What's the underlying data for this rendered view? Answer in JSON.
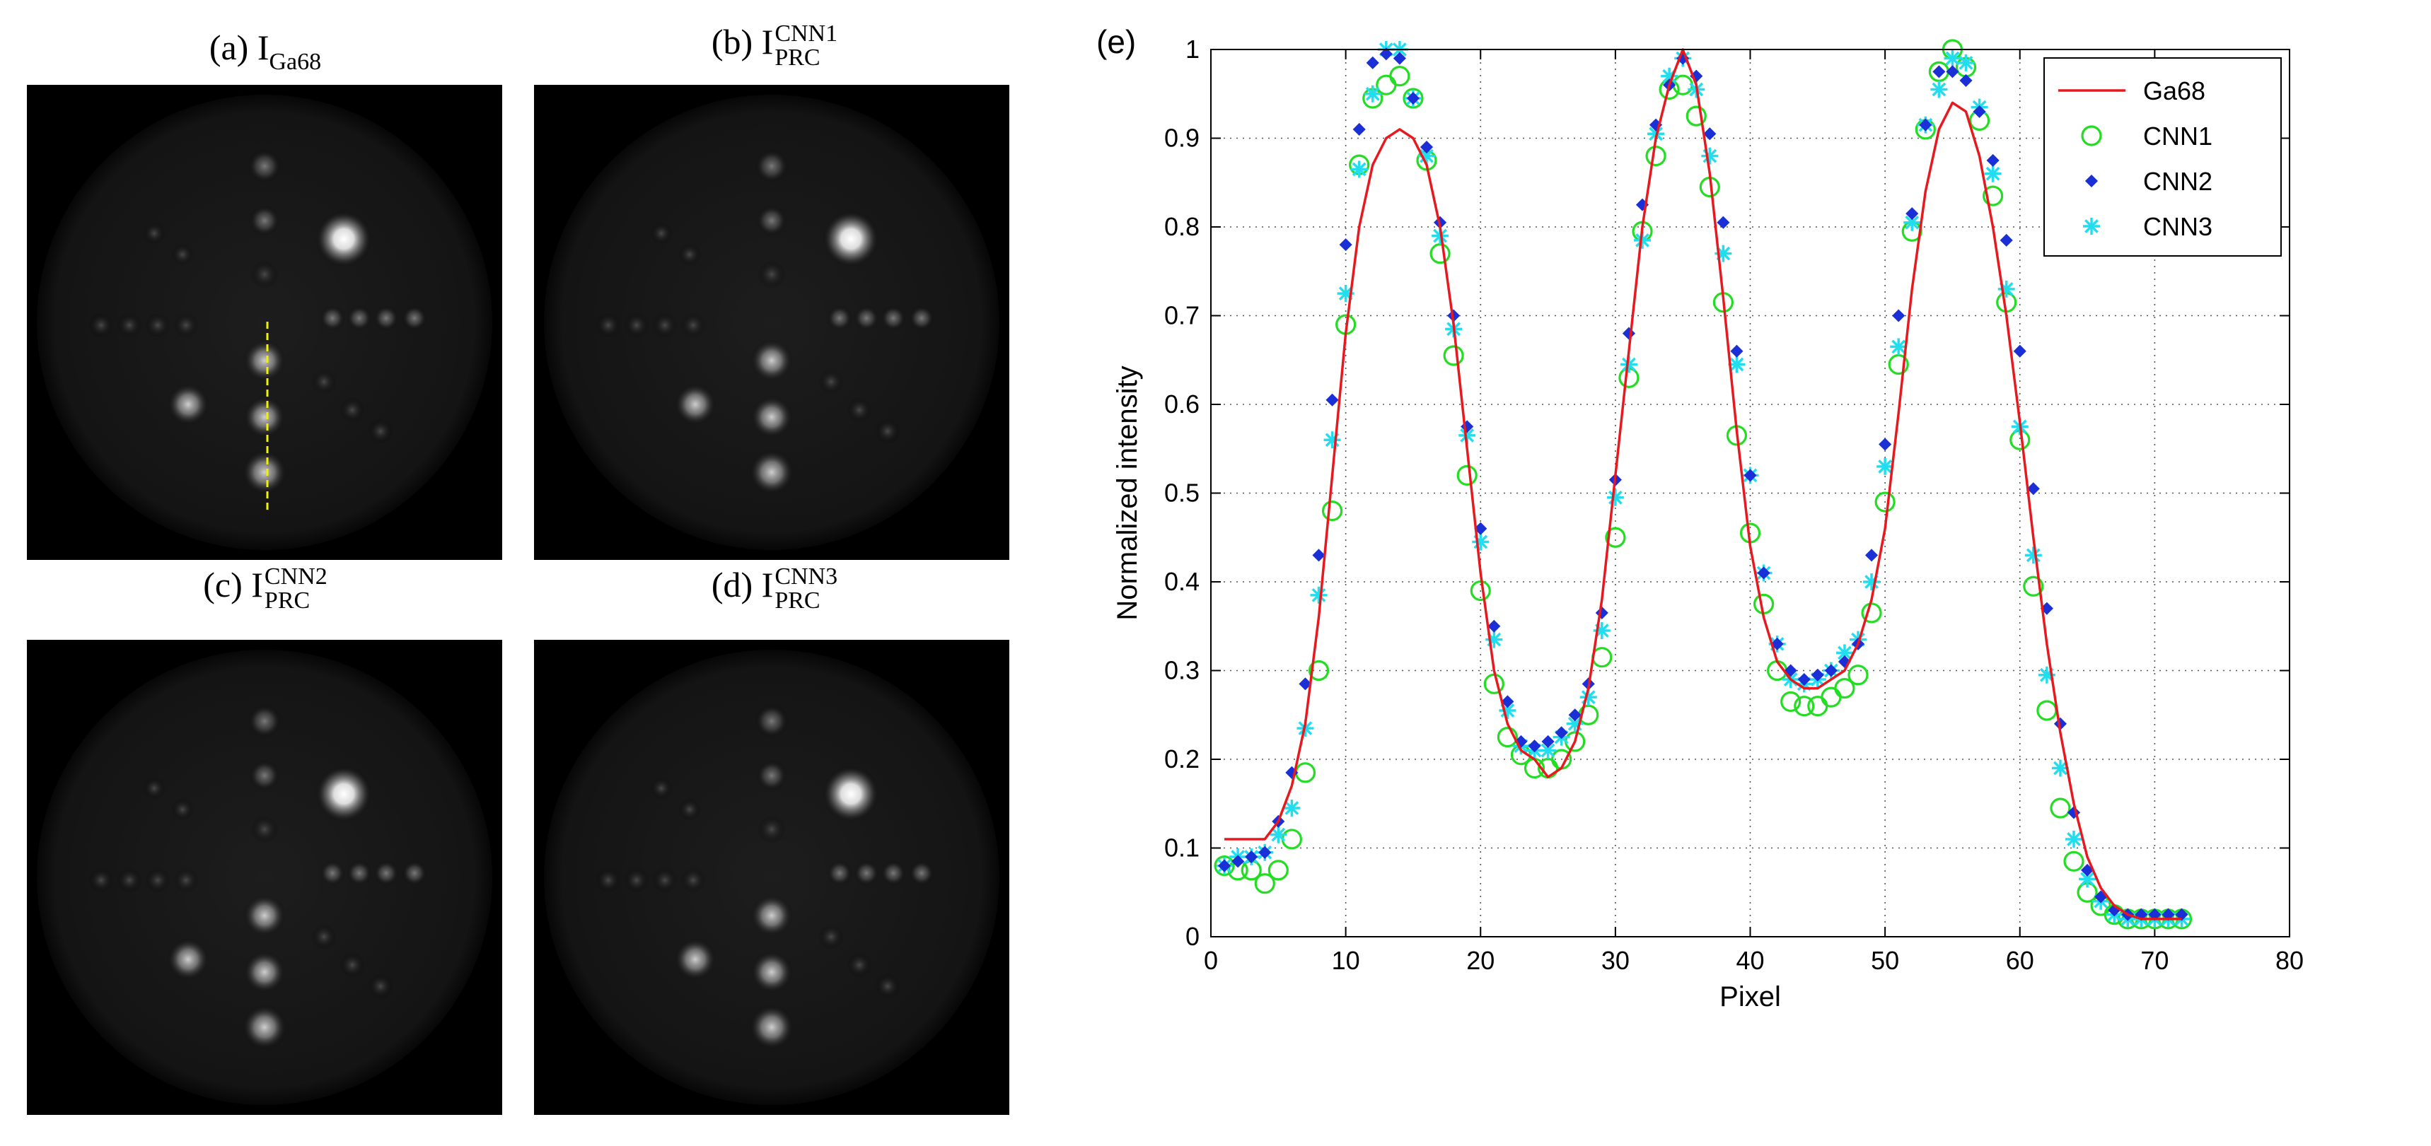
{
  "panels": {
    "a": {
      "prefix": "(a) I",
      "sub": "Ga68",
      "sup": ""
    },
    "b": {
      "prefix": "(b) I",
      "sub": "PRC",
      "sup": "CNN1"
    },
    "c": {
      "prefix": "(c) I",
      "sub": "PRC",
      "sup": "CNN2"
    },
    "d": {
      "prefix": "(d) I",
      "sub": "PRC",
      "sup": "CNN3"
    }
  },
  "chart_label": "(e)",
  "colors": {
    "ga68": "#e8191e",
    "cnn1": "#22dd22",
    "cnn2": "#1b2fd6",
    "cnn3": "#22ddee",
    "grid": "#555555"
  },
  "chart_data": {
    "type": "line",
    "xlabel": "Pixel",
    "ylabel": "Normalized intensity",
    "xlim": [
      0,
      80
    ],
    "ylim": [
      0,
      1
    ],
    "xticks": [
      0,
      10,
      20,
      30,
      40,
      50,
      60,
      70,
      80
    ],
    "yticks": [
      0,
      0.1,
      0.2,
      0.3,
      0.4,
      0.5,
      0.6,
      0.7,
      0.8,
      0.9,
      1
    ],
    "ytick_labels": [
      "0",
      "0.1",
      "0.2",
      "0.3",
      "0.4",
      "0.5",
      "0.6",
      "0.7",
      "0.8",
      "0.9",
      "1"
    ],
    "grid": true,
    "legend_position": "top-right",
    "x": [
      1,
      2,
      3,
      4,
      5,
      6,
      7,
      8,
      9,
      10,
      11,
      12,
      13,
      14,
      15,
      16,
      17,
      18,
      19,
      20,
      21,
      22,
      23,
      24,
      25,
      26,
      27,
      28,
      29,
      30,
      31,
      32,
      33,
      34,
      35,
      36,
      37,
      38,
      39,
      40,
      41,
      42,
      43,
      44,
      45,
      46,
      47,
      48,
      49,
      50,
      51,
      52,
      53,
      54,
      55,
      56,
      57,
      58,
      59,
      60,
      61,
      62,
      63,
      64,
      65,
      66,
      67,
      68,
      69,
      70,
      71,
      72
    ],
    "series": [
      {
        "name": "Ga68",
        "style": "line",
        "values": [
          0.11,
          0.11,
          0.11,
          0.11,
          0.13,
          0.17,
          0.24,
          0.36,
          0.52,
          0.68,
          0.8,
          0.87,
          0.9,
          0.91,
          0.9,
          0.87,
          0.8,
          0.69,
          0.55,
          0.41,
          0.3,
          0.24,
          0.21,
          0.2,
          0.18,
          0.19,
          0.22,
          0.28,
          0.38,
          0.52,
          0.66,
          0.8,
          0.9,
          0.96,
          1.0,
          0.96,
          0.86,
          0.72,
          0.57,
          0.44,
          0.36,
          0.31,
          0.29,
          0.28,
          0.28,
          0.29,
          0.3,
          0.33,
          0.38,
          0.46,
          0.59,
          0.73,
          0.84,
          0.91,
          0.94,
          0.93,
          0.88,
          0.8,
          0.7,
          0.58,
          0.45,
          0.33,
          0.23,
          0.15,
          0.09,
          0.055,
          0.035,
          0.025,
          0.02,
          0.02,
          0.02,
          0.02
        ]
      },
      {
        "name": "CNN1",
        "style": "circle",
        "values": [
          0.08,
          0.075,
          0.075,
          0.06,
          0.075,
          0.11,
          0.185,
          0.3,
          0.48,
          0.69,
          0.87,
          0.945,
          0.96,
          0.97,
          0.945,
          0.875,
          0.77,
          0.655,
          0.52,
          0.39,
          0.285,
          0.225,
          0.205,
          0.19,
          0.19,
          0.2,
          0.22,
          0.25,
          0.315,
          0.45,
          0.63,
          0.795,
          0.88,
          0.955,
          0.96,
          0.925,
          0.845,
          0.715,
          0.565,
          0.455,
          0.375,
          0.3,
          0.265,
          0.26,
          0.26,
          0.27,
          0.28,
          0.295,
          0.365,
          0.49,
          0.645,
          0.795,
          0.91,
          0.975,
          1.0,
          0.98,
          0.92,
          0.835,
          0.715,
          0.56,
          0.395,
          0.255,
          0.145,
          0.085,
          0.05,
          0.035,
          0.025,
          0.02,
          0.02,
          0.02,
          0.02,
          0.02
        ]
      },
      {
        "name": "CNN2",
        "style": "diamond",
        "values": [
          0.08,
          0.085,
          0.09,
          0.095,
          0.13,
          0.185,
          0.285,
          0.43,
          0.605,
          0.78,
          0.91,
          0.985,
          0.995,
          0.99,
          0.945,
          0.89,
          0.805,
          0.7,
          0.575,
          0.46,
          0.35,
          0.265,
          0.22,
          0.215,
          0.22,
          0.23,
          0.25,
          0.285,
          0.365,
          0.515,
          0.68,
          0.825,
          0.915,
          0.96,
          0.99,
          0.97,
          0.905,
          0.805,
          0.66,
          0.52,
          0.41,
          0.33,
          0.3,
          0.29,
          0.295,
          0.3,
          0.31,
          0.33,
          0.43,
          0.555,
          0.7,
          0.815,
          0.915,
          0.975,
          0.975,
          0.965,
          0.93,
          0.875,
          0.785,
          0.66,
          0.505,
          0.37,
          0.24,
          0.14,
          0.075,
          0.045,
          0.03,
          0.025,
          0.025,
          0.025,
          0.025,
          0.025
        ]
      },
      {
        "name": "CNN3",
        "style": "star",
        "values": [
          0.08,
          0.09,
          0.09,
          0.095,
          0.115,
          0.145,
          0.235,
          0.385,
          0.56,
          0.725,
          0.865,
          0.95,
          1.0,
          1.0,
          0.945,
          0.88,
          0.79,
          0.685,
          0.565,
          0.445,
          0.335,
          0.255,
          0.215,
          0.21,
          0.21,
          0.225,
          0.24,
          0.27,
          0.345,
          0.495,
          0.645,
          0.785,
          0.905,
          0.97,
          0.99,
          0.955,
          0.88,
          0.77,
          0.645,
          0.52,
          0.41,
          0.33,
          0.29,
          0.285,
          0.29,
          0.3,
          0.32,
          0.335,
          0.4,
          0.53,
          0.665,
          0.805,
          0.915,
          0.955,
          0.99,
          0.985,
          0.935,
          0.86,
          0.73,
          0.575,
          0.43,
          0.295,
          0.19,
          0.11,
          0.065,
          0.04,
          0.025,
          0.02,
          0.02,
          0.02,
          0.02,
          0.02
        ]
      }
    ]
  }
}
